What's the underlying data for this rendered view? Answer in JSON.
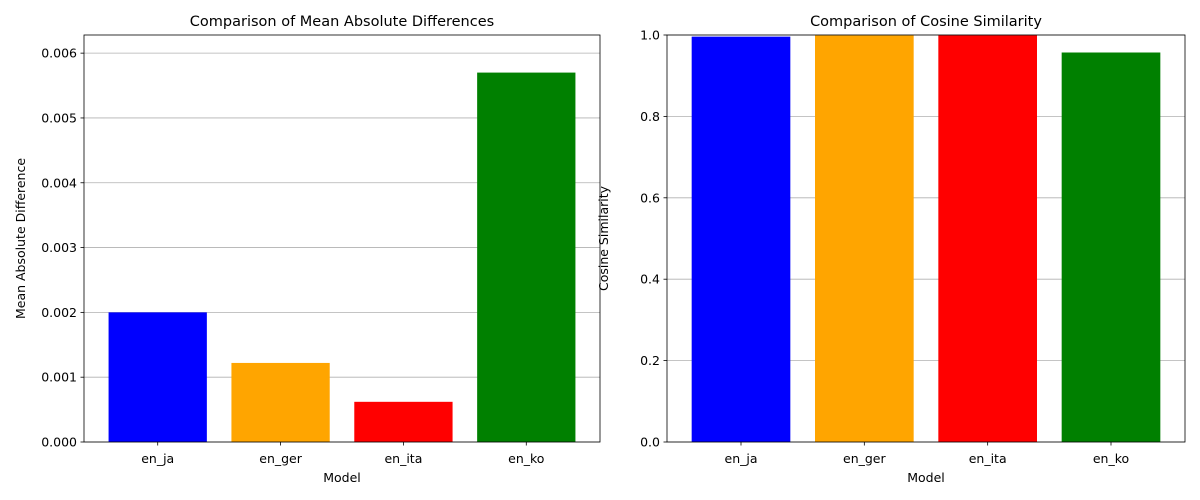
{
  "chart_data": [
    {
      "type": "bar",
      "title": "Comparison of Mean Absolute Differences",
      "xlabel": "Model",
      "ylabel": "Mean Absolute Difference",
      "categories": [
        "en_ja",
        "en_ger",
        "en_ita",
        "en_ko"
      ],
      "values": [
        0.002,
        0.00122,
        0.00062,
        0.0057
      ],
      "colors": [
        "#0000ff",
        "#ffa500",
        "#ff0000",
        "#008000"
      ],
      "ylim": [
        0,
        0.00628
      ],
      "yticks": [
        0.0,
        0.001,
        0.002,
        0.003,
        0.004,
        0.005,
        0.006
      ],
      "ytick_labels": [
        "0.000",
        "0.001",
        "0.002",
        "0.003",
        "0.004",
        "0.005",
        "0.006"
      ],
      "grid": "y"
    },
    {
      "type": "bar",
      "title": "Comparison of Cosine Similarity",
      "xlabel": "Model",
      "ylabel": "Cosine Similarity",
      "categories": [
        "en_ja",
        "en_ger",
        "en_ita",
        "en_ko"
      ],
      "values": [
        0.996,
        0.999,
        0.9995,
        0.957
      ],
      "colors": [
        "#0000ff",
        "#ffa500",
        "#ff0000",
        "#008000"
      ],
      "ylim": [
        0,
        1.0
      ],
      "yticks": [
        0.0,
        0.2,
        0.4,
        0.6,
        0.8,
        1.0
      ],
      "ytick_labels": [
        "0.0",
        "0.2",
        "0.4",
        "0.6",
        "0.8",
        "1.0"
      ],
      "grid": "y"
    }
  ]
}
